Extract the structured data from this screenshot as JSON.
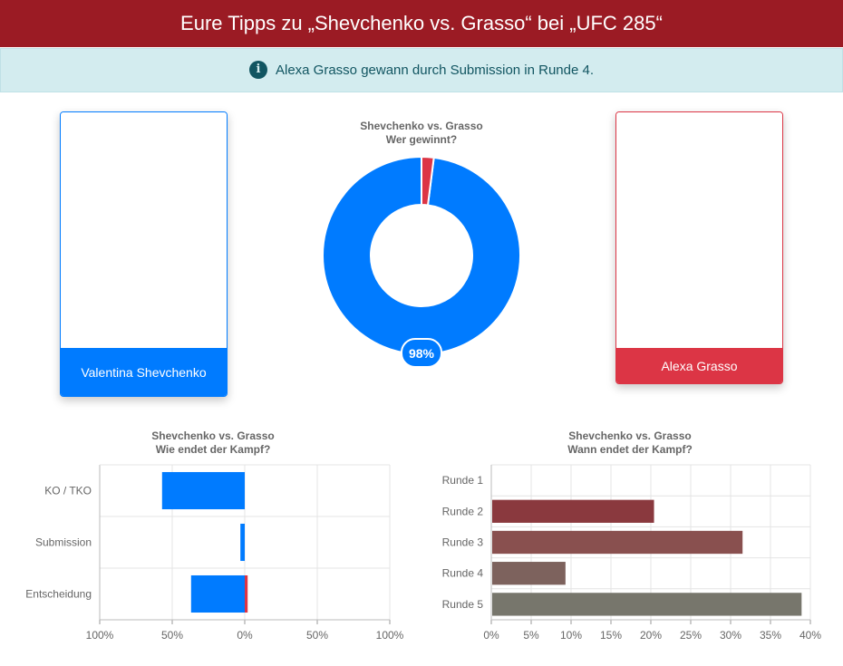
{
  "header": {
    "title": "Eure Tipps zu „Shevchenko vs. Grasso“ bei „UFC 285“"
  },
  "alert": {
    "icon": "info-icon",
    "text": "Alexa Grasso gewann durch Submission in Runde 4."
  },
  "fighters": [
    {
      "name": "Valentina Shevchenko",
      "color": "#007bff"
    },
    {
      "name": "Alexa Grasso",
      "color": "#dc3545"
    }
  ],
  "chart_data": [
    {
      "type": "pie",
      "title": "Shevchenko vs. Grasso",
      "subtitle": "Wer gewinnt?",
      "categories": [
        "Valentina Shevchenko",
        "Alexa Grasso"
      ],
      "values": [
        98,
        2
      ],
      "colors": [
        "#007bff",
        "#dc3545"
      ],
      "data_labels": [
        "98%",
        ""
      ]
    },
    {
      "type": "bar",
      "orientation": "horizontal",
      "stacked": "diverging",
      "title": "Shevchenko vs. Grasso",
      "subtitle": "Wie endet der Kampf?",
      "categories": [
        "KO / TKO",
        "Submission",
        "Entscheidung"
      ],
      "series": [
        {
          "values": [
            57,
            3,
            37
          ],
          "color": "#007bff",
          "direction": "left"
        },
        {
          "values": [
            0,
            0,
            2
          ],
          "color": "#dc3545",
          "direction": "right"
        }
      ],
      "xlim": [
        -100,
        100
      ],
      "ticks": [
        "100%",
        "50%",
        "0%",
        "50%",
        "100%"
      ],
      "grid": true
    },
    {
      "type": "bar",
      "orientation": "horizontal",
      "title": "Shevchenko vs. Grasso",
      "subtitle": "Wann endet der Kampf?",
      "categories": [
        "Runde 1",
        "Runde 2",
        "Runde 3",
        "Runde 4",
        "Runde 5"
      ],
      "values": [
        0,
        20.4,
        31.5,
        9.3,
        38.9
      ],
      "colors": [
        "#8f1c24",
        "#8a393e",
        "#89504f",
        "#7d625d",
        "#77766c"
      ],
      "xlim": [
        0,
        40
      ],
      "ticks": [
        "0%",
        "5%",
        "10%",
        "15%",
        "20%",
        "25%",
        "30%",
        "35%",
        "40%"
      ],
      "grid": true
    }
  ]
}
